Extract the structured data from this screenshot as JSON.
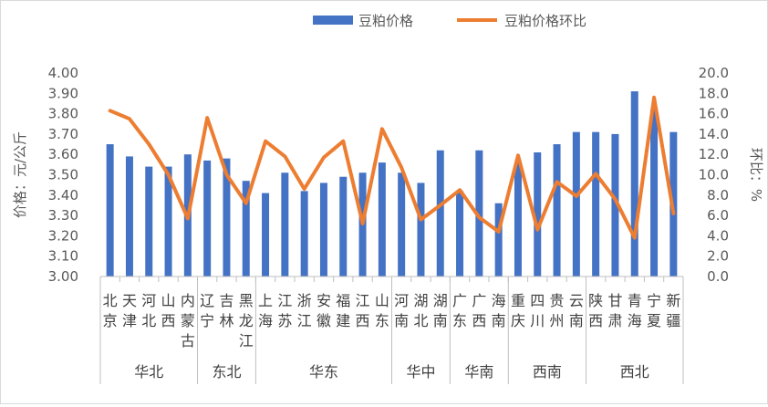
{
  "legend": {
    "bar_label": "豆粕价格",
    "line_label": "豆粕价格环比",
    "bar_color": "#4472C4",
    "line_color": "#ED7D31"
  },
  "chart_data": {
    "type": "bar",
    "xlabel": "",
    "ylabel": "价格：元/公斤",
    "y2label": "环比：%",
    "ylim": [
      3.0,
      4.0
    ],
    "y2lim": [
      0.0,
      20.0
    ],
    "yticks": [
      "3.00",
      "3.10",
      "3.20",
      "3.30",
      "3.40",
      "3.50",
      "3.60",
      "3.70",
      "3.80",
      "3.90",
      "4.00"
    ],
    "y2ticks": [
      "0.0",
      "2.0",
      "4.0",
      "6.0",
      "8.0",
      "10.0",
      "12.0",
      "14.0",
      "16.0",
      "18.0",
      "20.0"
    ],
    "grid": false,
    "legend_position": "top",
    "categories": [
      "北京",
      "天津",
      "河北",
      "山西",
      "内蒙古",
      "辽宁",
      "吉林",
      "黑龙江",
      "上海",
      "江苏",
      "浙江",
      "安徽",
      "福建",
      "江西",
      "山东",
      "河南",
      "湖北",
      "湖南",
      "广东",
      "广西",
      "海南",
      "重庆",
      "四川",
      "贵州",
      "云南",
      "陕西",
      "甘肃",
      "青海",
      "宁夏",
      "新疆"
    ],
    "groups": [
      {
        "name": "华北",
        "count": 5
      },
      {
        "name": "东北",
        "count": 3
      },
      {
        "name": "华东",
        "count": 7
      },
      {
        "name": "华中",
        "count": 3
      },
      {
        "name": "华南",
        "count": 3
      },
      {
        "name": "西南",
        "count": 4
      },
      {
        "name": "西北",
        "count": 5
      }
    ],
    "series": [
      {
        "name": "豆粕价格",
        "type": "bar",
        "axis": "left",
        "values": [
          3.65,
          3.59,
          3.54,
          3.54,
          3.6,
          3.57,
          3.58,
          3.47,
          3.41,
          3.51,
          3.42,
          3.46,
          3.49,
          3.51,
          3.56,
          3.51,
          3.46,
          3.62,
          3.42,
          3.62,
          3.36,
          3.56,
          3.61,
          3.65,
          3.71,
          3.71,
          3.7,
          3.91,
          3.82,
          3.71
        ]
      },
      {
        "name": "豆粕价格环比",
        "type": "line",
        "axis": "right",
        "values": [
          16.3,
          15.5,
          13.0,
          10.0,
          5.7,
          15.6,
          10.0,
          7.2,
          13.3,
          11.8,
          8.6,
          11.7,
          13.3,
          5.2,
          14.5,
          10.7,
          5.6,
          7.0,
          8.5,
          5.8,
          4.4,
          11.9,
          4.6,
          9.3,
          7.9,
          10.1,
          7.6,
          3.8,
          17.6,
          6.2
        ]
      }
    ]
  }
}
